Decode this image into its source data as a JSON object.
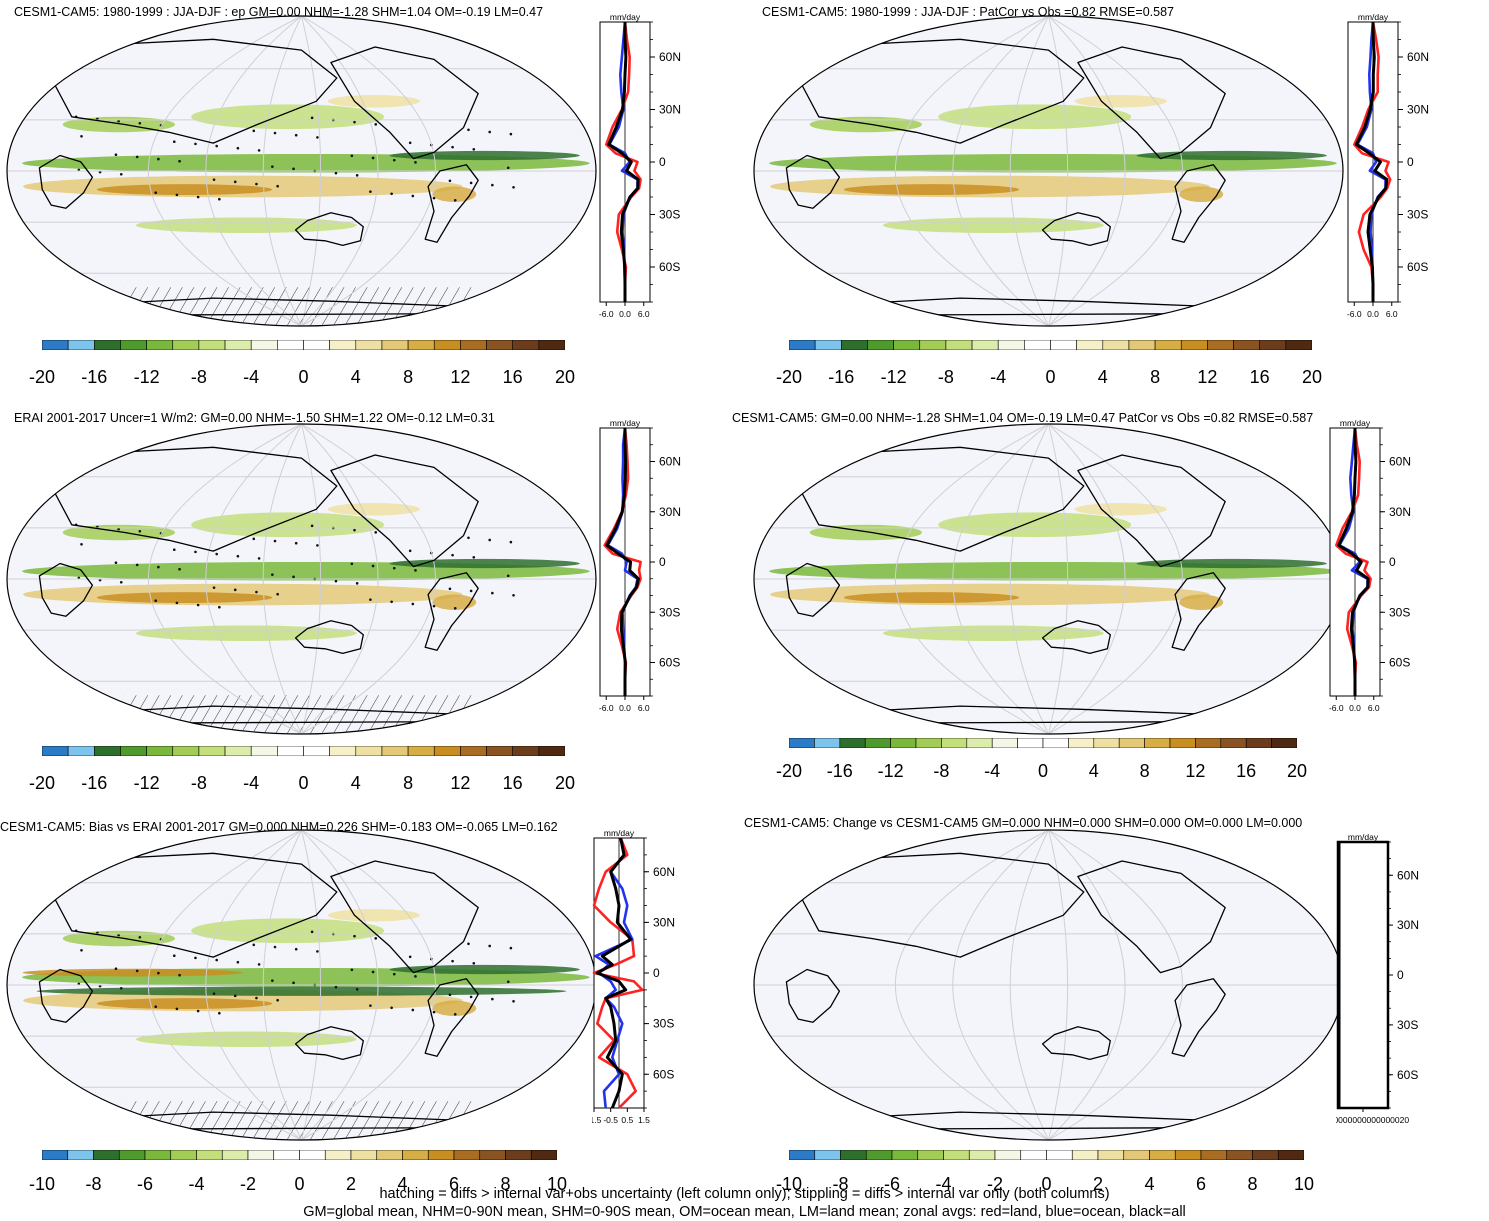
{
  "colors": {
    "land_zonal": "#ff2222",
    "ocean_zonal": "#2233ee",
    "all_zonal": "#000000",
    "map_background": "#f4f5fb",
    "map_grid": "#cfcfd4",
    "coastline": "#000000",
    "colorbar": [
      "#2c7bc6",
      "#7cc4ec",
      "#2e6f2e",
      "#4f9a2c",
      "#79b83a",
      "#a2cc55",
      "#c3df7c",
      "#dcecaa",
      "#f4f7e6",
      "#ffffff",
      "#ffffff",
      "#f6f0c8",
      "#eee0a2",
      "#e3c977",
      "#d7ad45",
      "#c98e22",
      "#a86c22",
      "#8a5322",
      "#6c3d1d",
      "#4f2912"
    ]
  },
  "zonal_units": "mm/day",
  "lat_labels": [
    "60N",
    "30N",
    "0",
    "30S",
    "60S"
  ],
  "panels": [
    {
      "id": "model-ep",
      "title": "CESM1-CAM5: 1980-1999 : JJA-DJF : ep GM=0.00 NHM=-1.28 SHM=1.04 OM=-0.19 LM=0.47",
      "colorbar_labels": [
        "-20",
        "-16",
        "-12",
        "-8",
        "-4",
        "0",
        "4",
        "8",
        "12",
        "16",
        "20"
      ],
      "zonal_xticks": [
        "-6.0",
        "0.0",
        "6.0"
      ],
      "zonal_xrange": [
        -8,
        8
      ],
      "hatching": true,
      "stippling": true,
      "empty": false
    },
    {
      "id": "model-patcor",
      "title": "CESM1-CAM5: 1980-1999 : JJA-DJF : PatCor vs Obs =0.82 RMSE=0.587",
      "colorbar_labels": [
        "-20",
        "-16",
        "-12",
        "-8",
        "-4",
        "0",
        "4",
        "8",
        "12",
        "16",
        "20"
      ],
      "zonal_xticks": [
        "-6.0",
        "0.0",
        "6.0"
      ],
      "zonal_xrange": [
        -8,
        8
      ],
      "hatching": false,
      "stippling": false,
      "empty": false
    },
    {
      "id": "erai",
      "title": "ERAI 2001-2017 Uncer=1 W/m2: GM=0.00 NHM=-1.50 SHM=1.22 OM=-0.12 LM=0.31",
      "colorbar_labels": [
        "-20",
        "-16",
        "-12",
        "-8",
        "-4",
        "0",
        "4",
        "8",
        "12",
        "16",
        "20"
      ],
      "zonal_xticks": [
        "-6.0",
        "0.0",
        "6.0"
      ],
      "zonal_xrange": [
        -8,
        8
      ],
      "hatching": true,
      "stippling": true,
      "empty": false
    },
    {
      "id": "model-summary",
      "title": "CESM1-CAM5: GM=0.00 NHM=-1.28 SHM=1.04 OM=-0.19 LM=0.47 PatCor vs Obs =0.82 RMSE=0.587",
      "colorbar_labels": [
        "-20",
        "-16",
        "-12",
        "-8",
        "-4",
        "0",
        "4",
        "8",
        "12",
        "16",
        "20"
      ],
      "zonal_xticks": [
        "-6.0",
        "0.0",
        "6.0"
      ],
      "zonal_xrange": [
        -8,
        8
      ],
      "hatching": false,
      "stippling": false,
      "empty": false
    },
    {
      "id": "bias",
      "title": "CESM1-CAM5: Bias vs ERAI 2001-2017 GM=0.000 NHM=0.226 SHM=-0.183 OM=-0.065 LM=0.162",
      "colorbar_labels": [
        "-10",
        "-8",
        "-6",
        "-4",
        "-2",
        "0",
        "2",
        "4",
        "6",
        "8",
        "10"
      ],
      "zonal_xticks": [
        "-1.5",
        "-0.5",
        "0.5",
        "1.5"
      ],
      "zonal_xrange": [
        -1.5,
        1.5
      ],
      "hatching": true,
      "stippling": true,
      "empty": false
    },
    {
      "id": "change",
      "title": "CESM1-CAM5: Change vs CESM1-CAM5 GM=0.000 NHM=0.000 SHM=0.000 OM=0.000 LM=0.000",
      "colorbar_labels": [
        "-10",
        "-8",
        "-6",
        "-4",
        "-2",
        "0",
        "2",
        "4",
        "6",
        "8",
        "10"
      ],
      "zonal_xticks": [
        "0.000000000000000020"
      ],
      "zonal_xrange": [
        -1,
        1
      ],
      "hatching": false,
      "stippling": false,
      "empty": true
    }
  ],
  "footer": {
    "line1": "hatching = diffs > internal var+obs uncertainty (left column only); stippling = diffs > internal var only (both columns)",
    "line2": "GM=global mean, NHM=0-90N mean, SHM=0-90S mean, OM=ocean mean, LM=land mean; zonal avgs: red=land, blue=ocean, black=all"
  },
  "chart_data": [
    {
      "type": "line",
      "title": "CESM1-CAM5: 1980-1999 : JJA-DJF : ep GM=0.00 NHM=-1.28 SHM=1.04 OM=-0.19 LM=0.47",
      "xlabel": "mm/day",
      "y": [
        80,
        70,
        60,
        50,
        40,
        30,
        20,
        10,
        5,
        0,
        -5,
        -10,
        -15,
        -20,
        -30,
        -40,
        -50,
        -60,
        -70,
        -80
      ],
      "xlim": [
        -8,
        8
      ],
      "ylim": [
        -80,
        80
      ],
      "series": [
        {
          "name": "land",
          "values": [
            0.0,
            0.6,
            1.5,
            1.3,
            1.0,
            -1.0,
            -4.0,
            -6.0,
            -3.0,
            4.0,
            3.0,
            5.0,
            4.5,
            2.0,
            -2.0,
            -2.5,
            -1.0,
            0.3,
            0.0,
            0.0
          ]
        },
        {
          "name": "ocean",
          "values": [
            0.0,
            -0.5,
            -1.0,
            -1.5,
            -1.2,
            -0.5,
            -2.0,
            -5.0,
            0.0,
            1.5,
            -1.0,
            4.0,
            4.0,
            1.5,
            -0.5,
            -0.8,
            -0.3,
            -0.2,
            0.0,
            0.0
          ]
        },
        {
          "name": "all",
          "values": [
            0.0,
            0.0,
            0.3,
            0.0,
            -0.2,
            -0.8,
            -2.8,
            -5.2,
            -1.0,
            2.0,
            0.5,
            4.2,
            4.1,
            1.6,
            -0.8,
            -1.2,
            -0.5,
            -0.1,
            0.0,
            0.0
          ]
        }
      ]
    },
    {
      "type": "line",
      "title": "CESM1-CAM5: 1980-1999 : JJA-DJF : PatCor vs Obs =0.82 RMSE=0.587",
      "xlabel": "mm/day",
      "y": [
        80,
        70,
        60,
        50,
        40,
        30,
        20,
        10,
        5,
        0,
        -5,
        -10,
        -15,
        -20,
        -30,
        -40,
        -50,
        -60,
        -70,
        -80
      ],
      "xlim": [
        -8,
        8
      ],
      "ylim": [
        -80,
        80
      ],
      "series": [
        {
          "name": "land",
          "values": [
            0.0,
            1.0,
            1.8,
            1.5,
            1.5,
            -1.5,
            -3.5,
            -6.0,
            -3.5,
            5.0,
            4.0,
            5.5,
            4.5,
            2.5,
            -3.0,
            -4.5,
            -3.0,
            -0.5,
            0.0,
            0.0
          ]
        },
        {
          "name": "ocean",
          "values": [
            0.0,
            -0.5,
            -0.8,
            -1.2,
            -1.0,
            -0.5,
            -2.0,
            -5.0,
            0.0,
            1.0,
            -1.0,
            4.0,
            4.0,
            1.5,
            -0.5,
            -0.8,
            -0.3,
            -0.2,
            0.0,
            0.0
          ]
        },
        {
          "name": "all",
          "values": [
            0.0,
            0.1,
            0.4,
            0.1,
            0.1,
            -0.9,
            -2.6,
            -5.3,
            -1.2,
            2.4,
            0.6,
            4.4,
            4.1,
            1.8,
            -1.0,
            -1.6,
            -0.9,
            -0.2,
            0.0,
            0.0
          ]
        }
      ]
    },
    {
      "type": "line",
      "title": "ERAI 2001-2017 Uncer=1 W/m2: GM=0.00 NHM=-1.50 SHM=1.22 OM=-0.12 LM=0.31",
      "xlabel": "mm/day",
      "y": [
        80,
        70,
        60,
        50,
        40,
        30,
        20,
        10,
        5,
        0,
        -5,
        -10,
        -15,
        -20,
        -30,
        -40,
        -50,
        -60,
        -70,
        -80
      ],
      "xlim": [
        -8,
        8
      ],
      "ylim": [
        -80,
        80
      ],
      "series": [
        {
          "name": "land",
          "values": [
            0.0,
            0.5,
            0.8,
            1.0,
            0.3,
            -1.0,
            -3.5,
            -6.5,
            -4.0,
            5.0,
            4.5,
            5.0,
            4.0,
            2.0,
            -1.5,
            -2.5,
            -1.0,
            0.3,
            0.0,
            0.0
          ]
        },
        {
          "name": "ocean",
          "values": [
            0.0,
            -0.6,
            -0.6,
            -0.8,
            -0.6,
            -0.8,
            -2.5,
            -5.5,
            -1.0,
            0.5,
            0.0,
            4.0,
            3.5,
            1.5,
            -0.8,
            -0.6,
            -0.3,
            0.0,
            0.0,
            0.0
          ]
        },
        {
          "name": "all",
          "values": [
            0.0,
            0.0,
            0.2,
            0.1,
            -0.2,
            -0.9,
            -3.0,
            -5.8,
            -2.2,
            1.8,
            1.5,
            4.3,
            3.7,
            1.7,
            -1.0,
            -1.2,
            -0.5,
            0.1,
            0.0,
            0.0
          ]
        }
      ]
    },
    {
      "type": "line",
      "title": "CESM1-CAM5: GM=0.00 NHM=-1.28 SHM=1.04 OM=-0.19 LM=0.47 PatCor vs Obs =0.82 RMSE=0.587",
      "xlabel": "mm/day",
      "y": [
        80,
        70,
        60,
        50,
        40,
        30,
        20,
        10,
        5,
        0,
        -5,
        -10,
        -15,
        -20,
        -30,
        -40,
        -50,
        -60,
        -70,
        -80
      ],
      "xlim": [
        -8,
        8
      ],
      "ylim": [
        -80,
        80
      ],
      "series": [
        {
          "name": "land",
          "values": [
            0.0,
            0.6,
            1.5,
            1.3,
            1.0,
            -1.0,
            -4.0,
            -6.0,
            -3.0,
            4.0,
            3.0,
            5.0,
            4.5,
            2.0,
            -2.0,
            -2.5,
            -1.0,
            0.3,
            0.0,
            0.0
          ]
        },
        {
          "name": "ocean",
          "values": [
            0.0,
            -0.5,
            -1.0,
            -1.5,
            -1.2,
            -0.5,
            -2.0,
            -5.0,
            0.0,
            1.5,
            -1.0,
            4.0,
            4.0,
            1.5,
            -0.5,
            -0.8,
            -0.3,
            -0.2,
            0.0,
            0.0
          ]
        },
        {
          "name": "all",
          "values": [
            0.0,
            0.0,
            0.3,
            0.0,
            -0.2,
            -0.8,
            -2.8,
            -5.2,
            -1.0,
            2.0,
            0.5,
            4.2,
            4.1,
            1.6,
            -0.8,
            -1.2,
            -0.5,
            -0.1,
            0.0,
            0.0
          ]
        }
      ]
    },
    {
      "type": "line",
      "title": "CESM1-CAM5: Bias vs ERAI 2001-2017 GM=0.000 NHM=0.226 SHM=-0.183 OM=-0.065 LM=0.162",
      "xlabel": "mm/day",
      "y": [
        80,
        70,
        60,
        50,
        40,
        30,
        20,
        10,
        5,
        0,
        -5,
        -10,
        -15,
        -20,
        -30,
        -40,
        -50,
        -60,
        -70,
        -80
      ],
      "xlim": [
        -1.5,
        1.5
      ],
      "ylim": [
        -80,
        80
      ],
      "series": [
        {
          "name": "land",
          "values": [
            0.1,
            0.5,
            -0.8,
            -1.2,
            -1.5,
            -0.5,
            0.8,
            0.9,
            -0.2,
            -1.5,
            0.9,
            1.4,
            -0.8,
            -1.0,
            -1.3,
            -0.3,
            -1.2,
            0.5,
            1.0,
            0.0
          ]
        },
        {
          "name": "ocean",
          "values": [
            0.1,
            0.3,
            -0.5,
            0.2,
            0.5,
            0.3,
            0.8,
            -1.4,
            -0.6,
            -1.2,
            -0.5,
            -0.2,
            -0.8,
            -0.3,
            0.2,
            -0.1,
            -0.4,
            0.0,
            -0.9,
            -0.8
          ]
        },
        {
          "name": "all",
          "values": [
            0.1,
            0.3,
            -0.5,
            -0.2,
            0.0,
            -0.1,
            0.7,
            -1.0,
            -0.4,
            -1.3,
            0.0,
            0.4,
            -0.8,
            -0.5,
            -0.3,
            -0.2,
            -0.7,
            0.2,
            0.0,
            -0.4
          ]
        }
      ]
    },
    {
      "type": "line",
      "title": "CESM1-CAM5: Change vs CESM1-CAM5 GM=0.000 NHM=0.000 SHM=0.000 OM=0.000 LM=0.000",
      "xlabel": "mm/day",
      "y": [
        80,
        70,
        60,
        50,
        40,
        30,
        20,
        10,
        5,
        0,
        -5,
        -10,
        -15,
        -20,
        -30,
        -40,
        -50,
        -60,
        -70,
        -80
      ],
      "xlim": [
        -1,
        1
      ],
      "ylim": [
        -80,
        80
      ],
      "series": [
        {
          "name": "land",
          "values": [
            0,
            0,
            0,
            0,
            0,
            0,
            0,
            0,
            0,
            0,
            0,
            0,
            0,
            0,
            0,
            0,
            0,
            0,
            0,
            0
          ]
        },
        {
          "name": "ocean",
          "values": [
            0,
            0,
            0,
            0,
            0,
            0,
            0,
            0,
            0,
            0,
            0,
            0,
            0,
            0,
            0,
            0,
            0,
            0,
            0,
            0
          ]
        },
        {
          "name": "all",
          "values": [
            0,
            0,
            0,
            0,
            0,
            0,
            0,
            0,
            0,
            0,
            0,
            0,
            0,
            0,
            0,
            0,
            0,
            0,
            0,
            0
          ]
        }
      ]
    }
  ]
}
